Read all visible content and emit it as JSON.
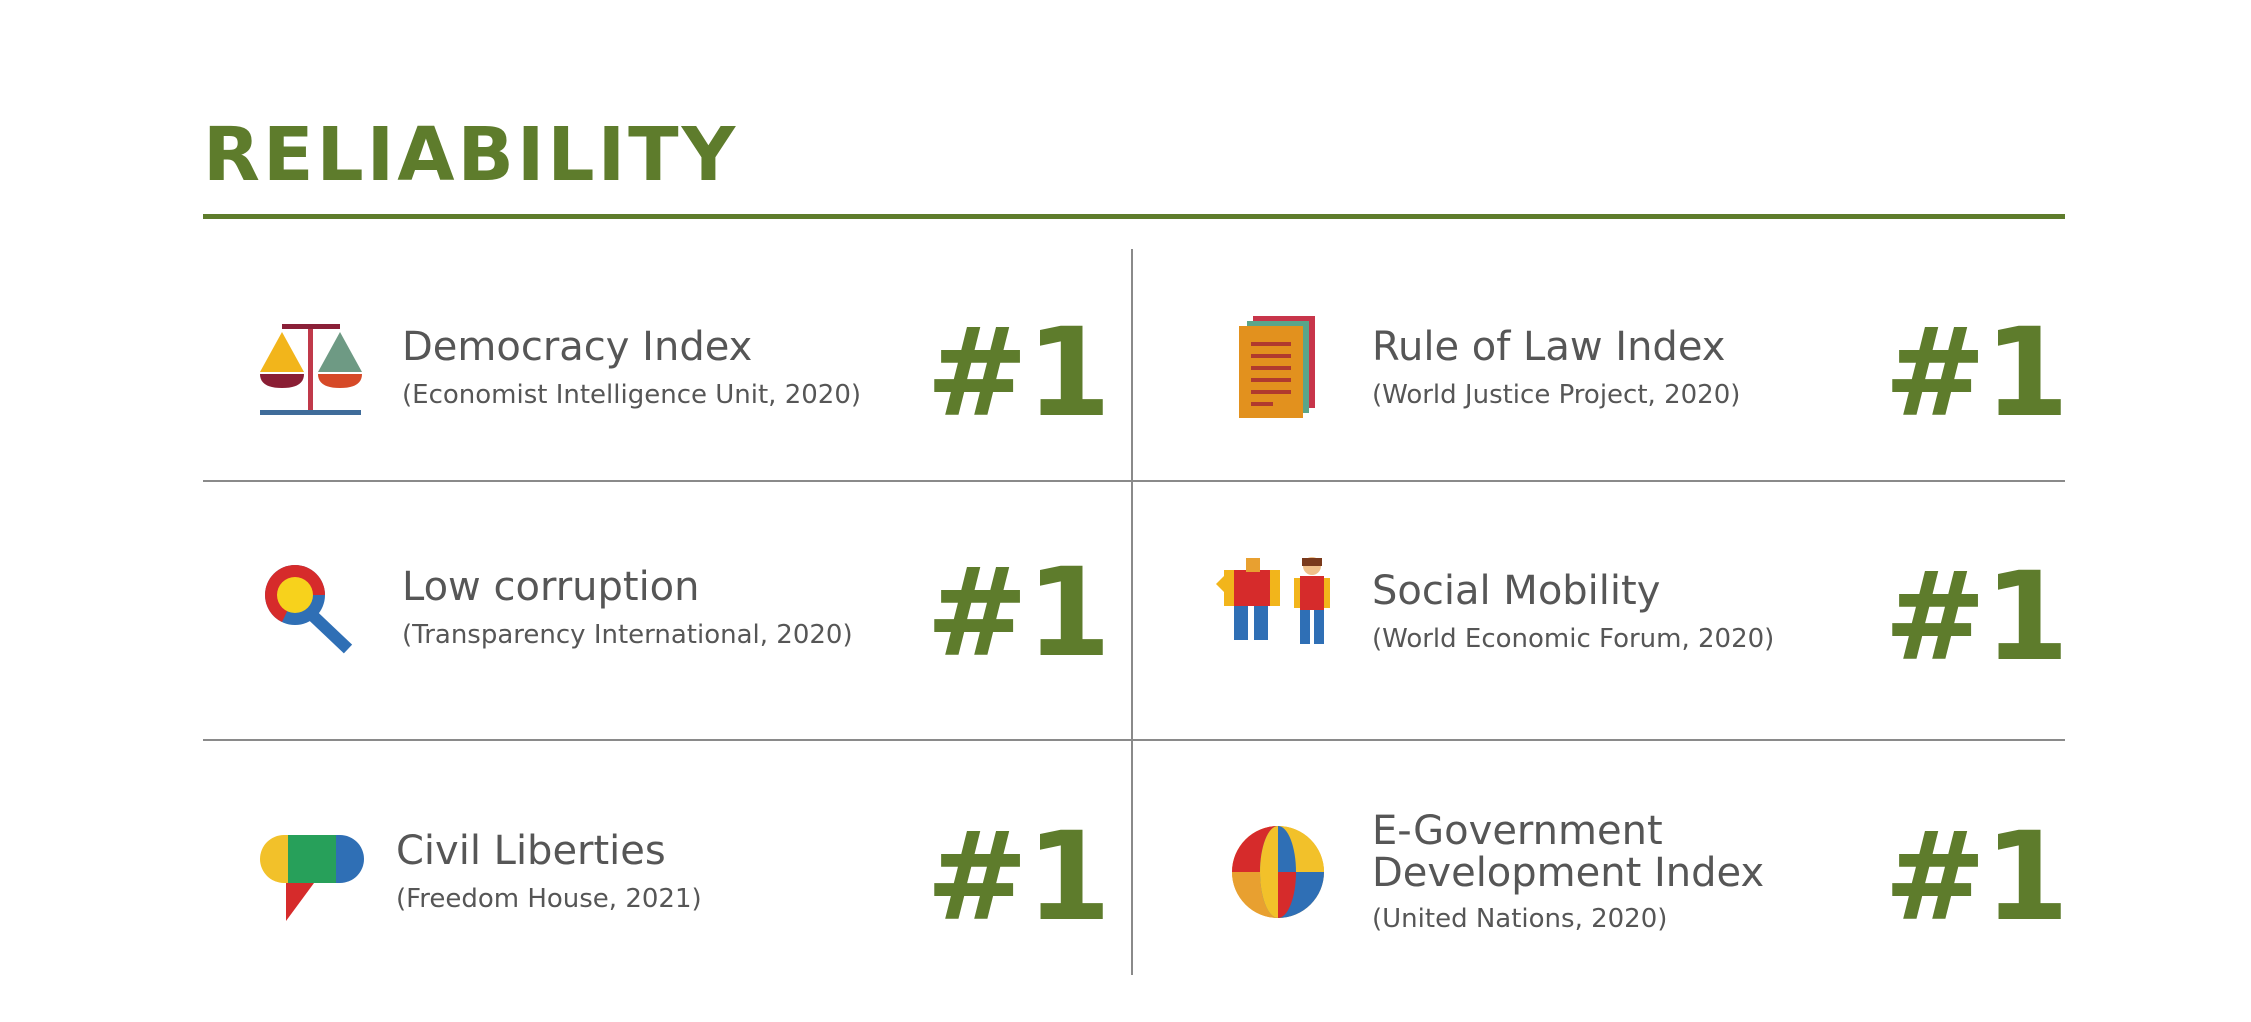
{
  "section_title": "RELIABILITY",
  "colors": {
    "accent": "#5e7c2c",
    "text": "#565656",
    "divider": "#8a8a8a"
  },
  "items": [
    {
      "name": "Democracy Index",
      "source": "(Economist Intelligence Unit, 2020)",
      "rank": "#1",
      "icon": "scales-icon"
    },
    {
      "name": "Rule of Law Index",
      "source": "(World Justice Project, 2020)",
      "rank": "#1",
      "icon": "document-stack-icon"
    },
    {
      "name": "Low corruption",
      "source": "(Transparency International, 2020)",
      "rank": "#1",
      "icon": "magnifier-icon"
    },
    {
      "name": "Social Mobility",
      "source": "(World Economic Forum, 2020)",
      "rank": "#1",
      "icon": "people-icon"
    },
    {
      "name": "Civil Liberties",
      "source": "(Freedom House, 2021)",
      "rank": "#1",
      "icon": "speech-bubble-icon"
    },
    {
      "name": "E-Government Development Index",
      "source": "(United Nations, 2020)",
      "rank": "#1",
      "icon": "globe-icon"
    }
  ]
}
